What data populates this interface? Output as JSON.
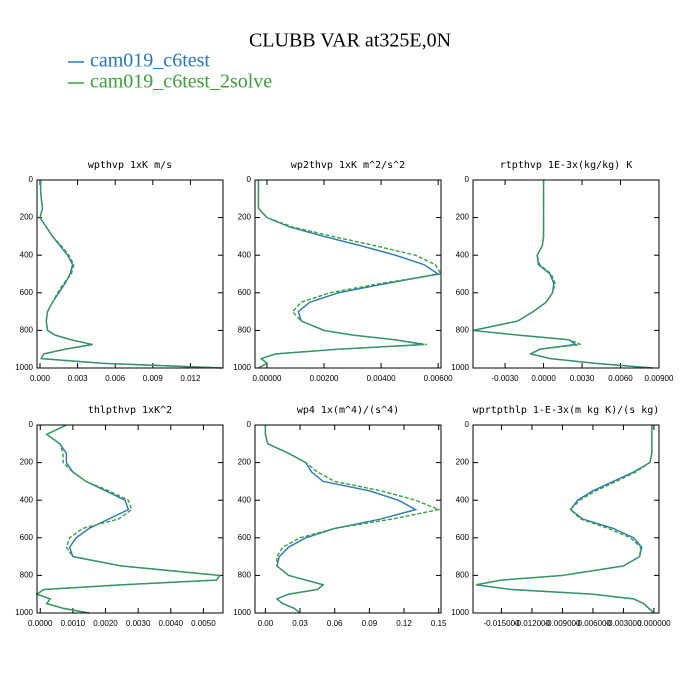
{
  "title": "CLUBB VAR at325E,0N",
  "chart_data": [
    {
      "type": "line",
      "title": "wpthvp  1xK m/s",
      "y": [
        0,
        50,
        100,
        150,
        200,
        250,
        300,
        350,
        400,
        450,
        500,
        550,
        600,
        650,
        700,
        750,
        800,
        825,
        850,
        875,
        900,
        925,
        950,
        975,
        1000
      ],
      "series": [
        {
          "name": "cam019_c6test",
          "color": "#2878b8",
          "values": [
            5e-05,
            5e-05,
            0.0001,
            0.0002,
            0.0,
            0.0005,
            0.001,
            0.0016,
            0.0022,
            0.0026,
            0.0024,
            0.002,
            0.0015,
            0.001,
            0.0006,
            0.0005,
            0.0006,
            0.0012,
            0.0025,
            0.0042,
            0.002,
            0.0003,
            0.0001,
            0.005,
            0.0145
          ]
        },
        {
          "name": "cam019_c6test_2solve",
          "color": "#3aa03a",
          "dashed": true,
          "values": [
            5e-05,
            5e-05,
            0.0001,
            0.0002,
            0.0,
            0.0005,
            0.001,
            0.0017,
            0.0023,
            0.0027,
            0.0025,
            0.0019,
            0.0014,
            0.001,
            0.0006,
            0.0005,
            0.0006,
            0.0012,
            0.0025,
            0.0041,
            0.002,
            0.0003,
            0.0001,
            0.005,
            0.0145
          ]
        }
      ],
      "xlim": [
        -0.00024,
        0.0146
      ],
      "ylim": [
        0,
        1000
      ],
      "y_inverted": true,
      "xticks": [
        {
          "value": 0,
          "label": "0.000"
        },
        {
          "value": 0.003,
          "label": "0.003"
        },
        {
          "value": 0.006,
          "label": "0.006"
        },
        {
          "value": 0.009,
          "label": "0.009"
        },
        {
          "value": 0.012,
          "label": "0.012"
        }
      ],
      "yticks": [
        0,
        200,
        400,
        600,
        800,
        1000
      ]
    },
    {
      "type": "line",
      "title": "wp2thvp  1xK m^2/s^2",
      "y": [
        0,
        50,
        100,
        150,
        200,
        250,
        300,
        350,
        400,
        450,
        500,
        550,
        600,
        650,
        700,
        750,
        800,
        825,
        850,
        875,
        900,
        925,
        950,
        975,
        1000
      ],
      "series": [
        {
          "name": "cam019_c6test",
          "color": "#2878b8",
          "values": [
            -0.0003,
            -0.0003,
            -0.0003,
            -0.0003,
            0.0,
            0.0008,
            0.002,
            0.0033,
            0.0045,
            0.0055,
            0.006,
            0.0042,
            0.0025,
            0.0015,
            0.0011,
            0.0012,
            0.002,
            0.003,
            0.0045,
            0.0055,
            0.0025,
            0.0003,
            -0.0002,
            0.0,
            -0.0003
          ]
        },
        {
          "name": "cam019_c6test_2solve",
          "color": "#3aa03a",
          "dashed": true,
          "values": [
            -0.0003,
            -0.0003,
            -0.0003,
            -0.0003,
            0.0,
            0.0009,
            0.0023,
            0.0038,
            0.0052,
            0.0059,
            0.0061,
            0.004,
            0.0022,
            0.0012,
            0.0009,
            0.0012,
            0.002,
            0.003,
            0.0045,
            0.0056,
            0.0025,
            0.0003,
            -0.0002,
            0.0,
            -0.0003
          ]
        }
      ],
      "xlim": [
        -0.00042,
        0.0061
      ],
      "ylim": [
        0,
        1000
      ],
      "y_inverted": true,
      "xticks": [
        {
          "value": 0,
          "label": "0.00000"
        },
        {
          "value": 0.002,
          "label": "0.00200"
        },
        {
          "value": 0.004,
          "label": "0.00400"
        },
        {
          "value": 0.006,
          "label": "0.00600"
        }
      ],
      "yticks": [
        0,
        200,
        400,
        600,
        800,
        1000
      ]
    },
    {
      "type": "line",
      "title": "rtpthvp  1E-3x(kg/kg) K",
      "y": [
        0,
        50,
        100,
        150,
        200,
        250,
        300,
        350,
        400,
        450,
        500,
        550,
        600,
        650,
        700,
        750,
        800,
        825,
        850,
        875,
        900,
        925,
        950,
        975,
        1000
      ],
      "series": [
        {
          "name": "cam019_c6test",
          "color": "#2878b8",
          "values": [
            0.0,
            0.0,
            0.0,
            0.0,
            0.0,
            0.0,
            0.0,
            -0.0001,
            -0.0005,
            -0.0004,
            0.0005,
            0.0008,
            0.0007,
            0.0002,
            -0.0008,
            -0.002,
            -0.0055,
            -0.002,
            0.002,
            0.0025,
            -0.0003,
            -0.001,
            0.0005,
            0.004,
            0.0085
          ]
        },
        {
          "name": "cam019_c6test_2solve",
          "color": "#3aa03a",
          "dashed": true,
          "values": [
            0.0,
            0.0,
            0.0,
            0.0,
            0.0,
            0.0,
            0.0,
            -0.0001,
            -0.0005,
            -0.0003,
            0.0006,
            0.0009,
            0.0007,
            0.0002,
            -0.0008,
            -0.002,
            -0.0055,
            -0.002,
            0.002,
            0.0029,
            -0.0003,
            -0.001,
            0.0005,
            0.004,
            0.0085
          ]
        }
      ],
      "xlim": [
        -0.0055,
        0.009
      ],
      "ylim": [
        0,
        1000
      ],
      "y_inverted": true,
      "xticks": [
        {
          "value": -0.003,
          "label": "-0.0030"
        },
        {
          "value": 0,
          "label": "0.0000"
        },
        {
          "value": 0.003,
          "label": "0.0030"
        },
        {
          "value": 0.006,
          "label": "0.0060"
        },
        {
          "value": 0.009,
          "label": "0.00900"
        }
      ],
      "yticks": [
        0,
        200,
        400,
        600,
        800,
        1000
      ]
    },
    {
      "type": "line",
      "title": "thlpthvp  1xK^2",
      "y": [
        0,
        50,
        100,
        150,
        200,
        250,
        300,
        350,
        400,
        450,
        500,
        550,
        600,
        650,
        700,
        750,
        800,
        825,
        850,
        875,
        900,
        925,
        950,
        975,
        1000
      ],
      "series": [
        {
          "name": "cam019_c6test",
          "color": "#2878b8",
          "values": [
            0.0008,
            0.0002,
            0.0006,
            0.0008,
            0.0008,
            0.001,
            0.0014,
            0.002,
            0.0026,
            0.0027,
            0.0021,
            0.0015,
            0.0011,
            0.0009,
            0.001,
            0.0025,
            0.0055,
            0.0054,
            0.0025,
            0.0001,
            -0.0001,
            0.0003,
            0.0002,
            0.0007,
            0.0015
          ]
        },
        {
          "name": "cam019_c6test_2solve",
          "color": "#3aa03a",
          "dashed": true,
          "values": [
            0.0008,
            0.0002,
            0.0006,
            0.0007,
            0.0007,
            0.001,
            0.0014,
            0.0021,
            0.0027,
            0.0028,
            0.0024,
            0.0013,
            0.0009,
            0.0008,
            0.001,
            0.0025,
            0.0055,
            0.0054,
            0.0025,
            0.0001,
            -0.0001,
            0.0003,
            0.0002,
            0.0007,
            0.0015
          ]
        }
      ],
      "xlim": [
        -0.0001,
        0.0056
      ],
      "ylim": [
        0,
        1000
      ],
      "y_inverted": true,
      "xticks": [
        {
          "value": 0,
          "label": "0.0000"
        },
        {
          "value": 0.001,
          "label": "0.0010"
        },
        {
          "value": 0.002,
          "label": "0.0020"
        },
        {
          "value": 0.003,
          "label": "0.0030"
        },
        {
          "value": 0.004,
          "label": "0.0040"
        },
        {
          "value": 0.005,
          "label": "0.0050"
        }
      ],
      "yticks": [
        0,
        200,
        400,
        600,
        800,
        1000
      ]
    },
    {
      "type": "line",
      "title": "wp4  1x(m^4)/(s^4)",
      "y": [
        0,
        50,
        100,
        150,
        200,
        250,
        300,
        350,
        400,
        450,
        500,
        550,
        600,
        650,
        700,
        750,
        800,
        825,
        850,
        875,
        900,
        925,
        950,
        975,
        1000
      ],
      "series": [
        {
          "name": "cam019_c6test",
          "color": "#2878b8",
          "values": [
            0.0,
            0.0,
            0.002,
            0.02,
            0.035,
            0.04,
            0.05,
            0.09,
            0.115,
            0.13,
            0.1,
            0.06,
            0.035,
            0.02,
            0.012,
            0.01,
            0.02,
            0.035,
            0.05,
            0.045,
            0.02,
            0.01,
            0.015,
            0.025,
            0.03
          ]
        },
        {
          "name": "cam019_c6test_2solve",
          "color": "#3aa03a",
          "dashed": true,
          "values": [
            0.0,
            0.0,
            0.002,
            0.02,
            0.035,
            0.045,
            0.06,
            0.1,
            0.13,
            0.15,
            0.11,
            0.06,
            0.03,
            0.015,
            0.01,
            0.01,
            0.02,
            0.035,
            0.05,
            0.045,
            0.02,
            0.01,
            0.015,
            0.025,
            0.03
          ]
        }
      ],
      "xlim": [
        -0.009,
        0.152
      ],
      "ylim": [
        0,
        1000
      ],
      "y_inverted": true,
      "xticks": [
        {
          "value": 0,
          "label": "0.00"
        },
        {
          "value": 0.03,
          "label": "0.03"
        },
        {
          "value": 0.06,
          "label": "0.06"
        },
        {
          "value": 0.09,
          "label": "0.09"
        },
        {
          "value": 0.12,
          "label": "0.12"
        },
        {
          "value": 0.15,
          "label": "0.15"
        }
      ],
      "yticks": [
        0,
        200,
        400,
        600,
        800,
        1000
      ]
    },
    {
      "type": "line",
      "title": "wprtpthlp  1-E-3x(m kg K)/(s kg)",
      "y": [
        0,
        50,
        100,
        150,
        200,
        250,
        300,
        350,
        400,
        450,
        500,
        550,
        600,
        650,
        700,
        750,
        800,
        825,
        850,
        875,
        900,
        925,
        950,
        975,
        1000
      ],
      "series": [
        {
          "name": "cam019_c6test",
          "color": "#2878b8",
          "values": [
            -0.0002,
            -0.0002,
            -0.0002,
            -0.0002,
            -0.0004,
            -0.002,
            -0.004,
            -0.006,
            -0.0075,
            -0.0082,
            -0.007,
            -0.004,
            -0.002,
            -0.0012,
            -0.0014,
            -0.003,
            -0.009,
            -0.015,
            -0.0175,
            -0.014,
            -0.006,
            -0.002,
            -0.001,
            -0.0005,
            0.0
          ]
        },
        {
          "name": "cam019_c6test_2solve",
          "color": "#3aa03a",
          "dashed": true,
          "values": [
            -0.0002,
            -0.0002,
            -0.0002,
            -0.0002,
            -0.0004,
            -0.0018,
            -0.0037,
            -0.0057,
            -0.0073,
            -0.0082,
            -0.0072,
            -0.0045,
            -0.0023,
            -0.0013,
            -0.0014,
            -0.003,
            -0.009,
            -0.015,
            -0.0175,
            -0.014,
            -0.006,
            -0.002,
            -0.001,
            -0.0005,
            0.0
          ]
        }
      ],
      "xlim": [
        -0.0178,
        0.0005
      ],
      "ylim": [
        0,
        1000
      ],
      "y_inverted": true,
      "xticks": [
        {
          "value": -0.015,
          "label": "-0.015000"
        },
        {
          "value": -0.012,
          "label": "-0.012000"
        },
        {
          "value": -0.009,
          "label": "-0.009000"
        },
        {
          "value": -0.006,
          "label": "-0.006000"
        },
        {
          "value": -0.003,
          "label": "-0.003000"
        },
        {
          "value": 0,
          "label": "0.000000"
        }
      ],
      "yticks": [
        0,
        200,
        400,
        600,
        800,
        1000
      ]
    }
  ]
}
